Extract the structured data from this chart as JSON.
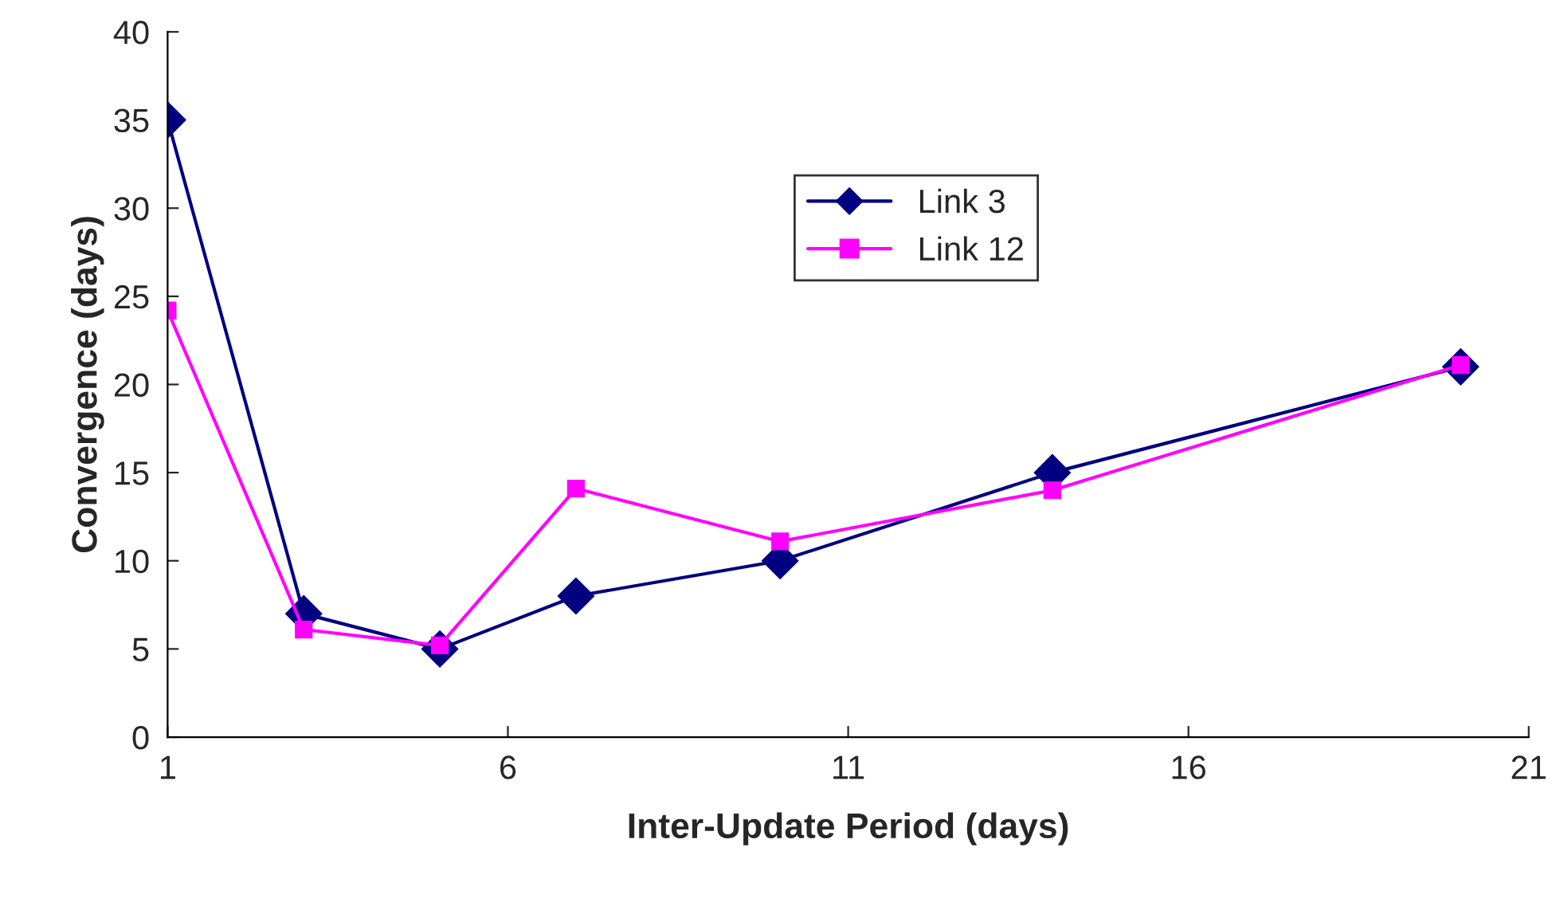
{
  "chart_data": {
    "type": "line",
    "xlabel": "Inter-Update Period (days)",
    "ylabel": "Convergence (days)",
    "xlim": [
      1,
      21
    ],
    "xticks": [
      1,
      6,
      11,
      16,
      21
    ],
    "ylim": [
      0,
      40
    ],
    "yticks": [
      0,
      5,
      10,
      15,
      20,
      25,
      30,
      35,
      40
    ],
    "grid": false,
    "legend": "top",
    "line_style": "solid",
    "series": [
      {
        "name": "Link 3",
        "color": "#000080",
        "marker": "diamond",
        "x": [
          1,
          3,
          5,
          7,
          10,
          14,
          20
        ],
        "values": [
          35,
          7,
          5,
          8,
          10,
          15,
          21
        ]
      },
      {
        "name": "Link 12",
        "color": "#ff00ff",
        "marker": "square",
        "x": [
          1,
          3,
          5,
          7,
          10,
          14,
          20
        ],
        "values": [
          24.2,
          6.1,
          5.2,
          14.1,
          11.1,
          14,
          21.1
        ]
      }
    ]
  }
}
